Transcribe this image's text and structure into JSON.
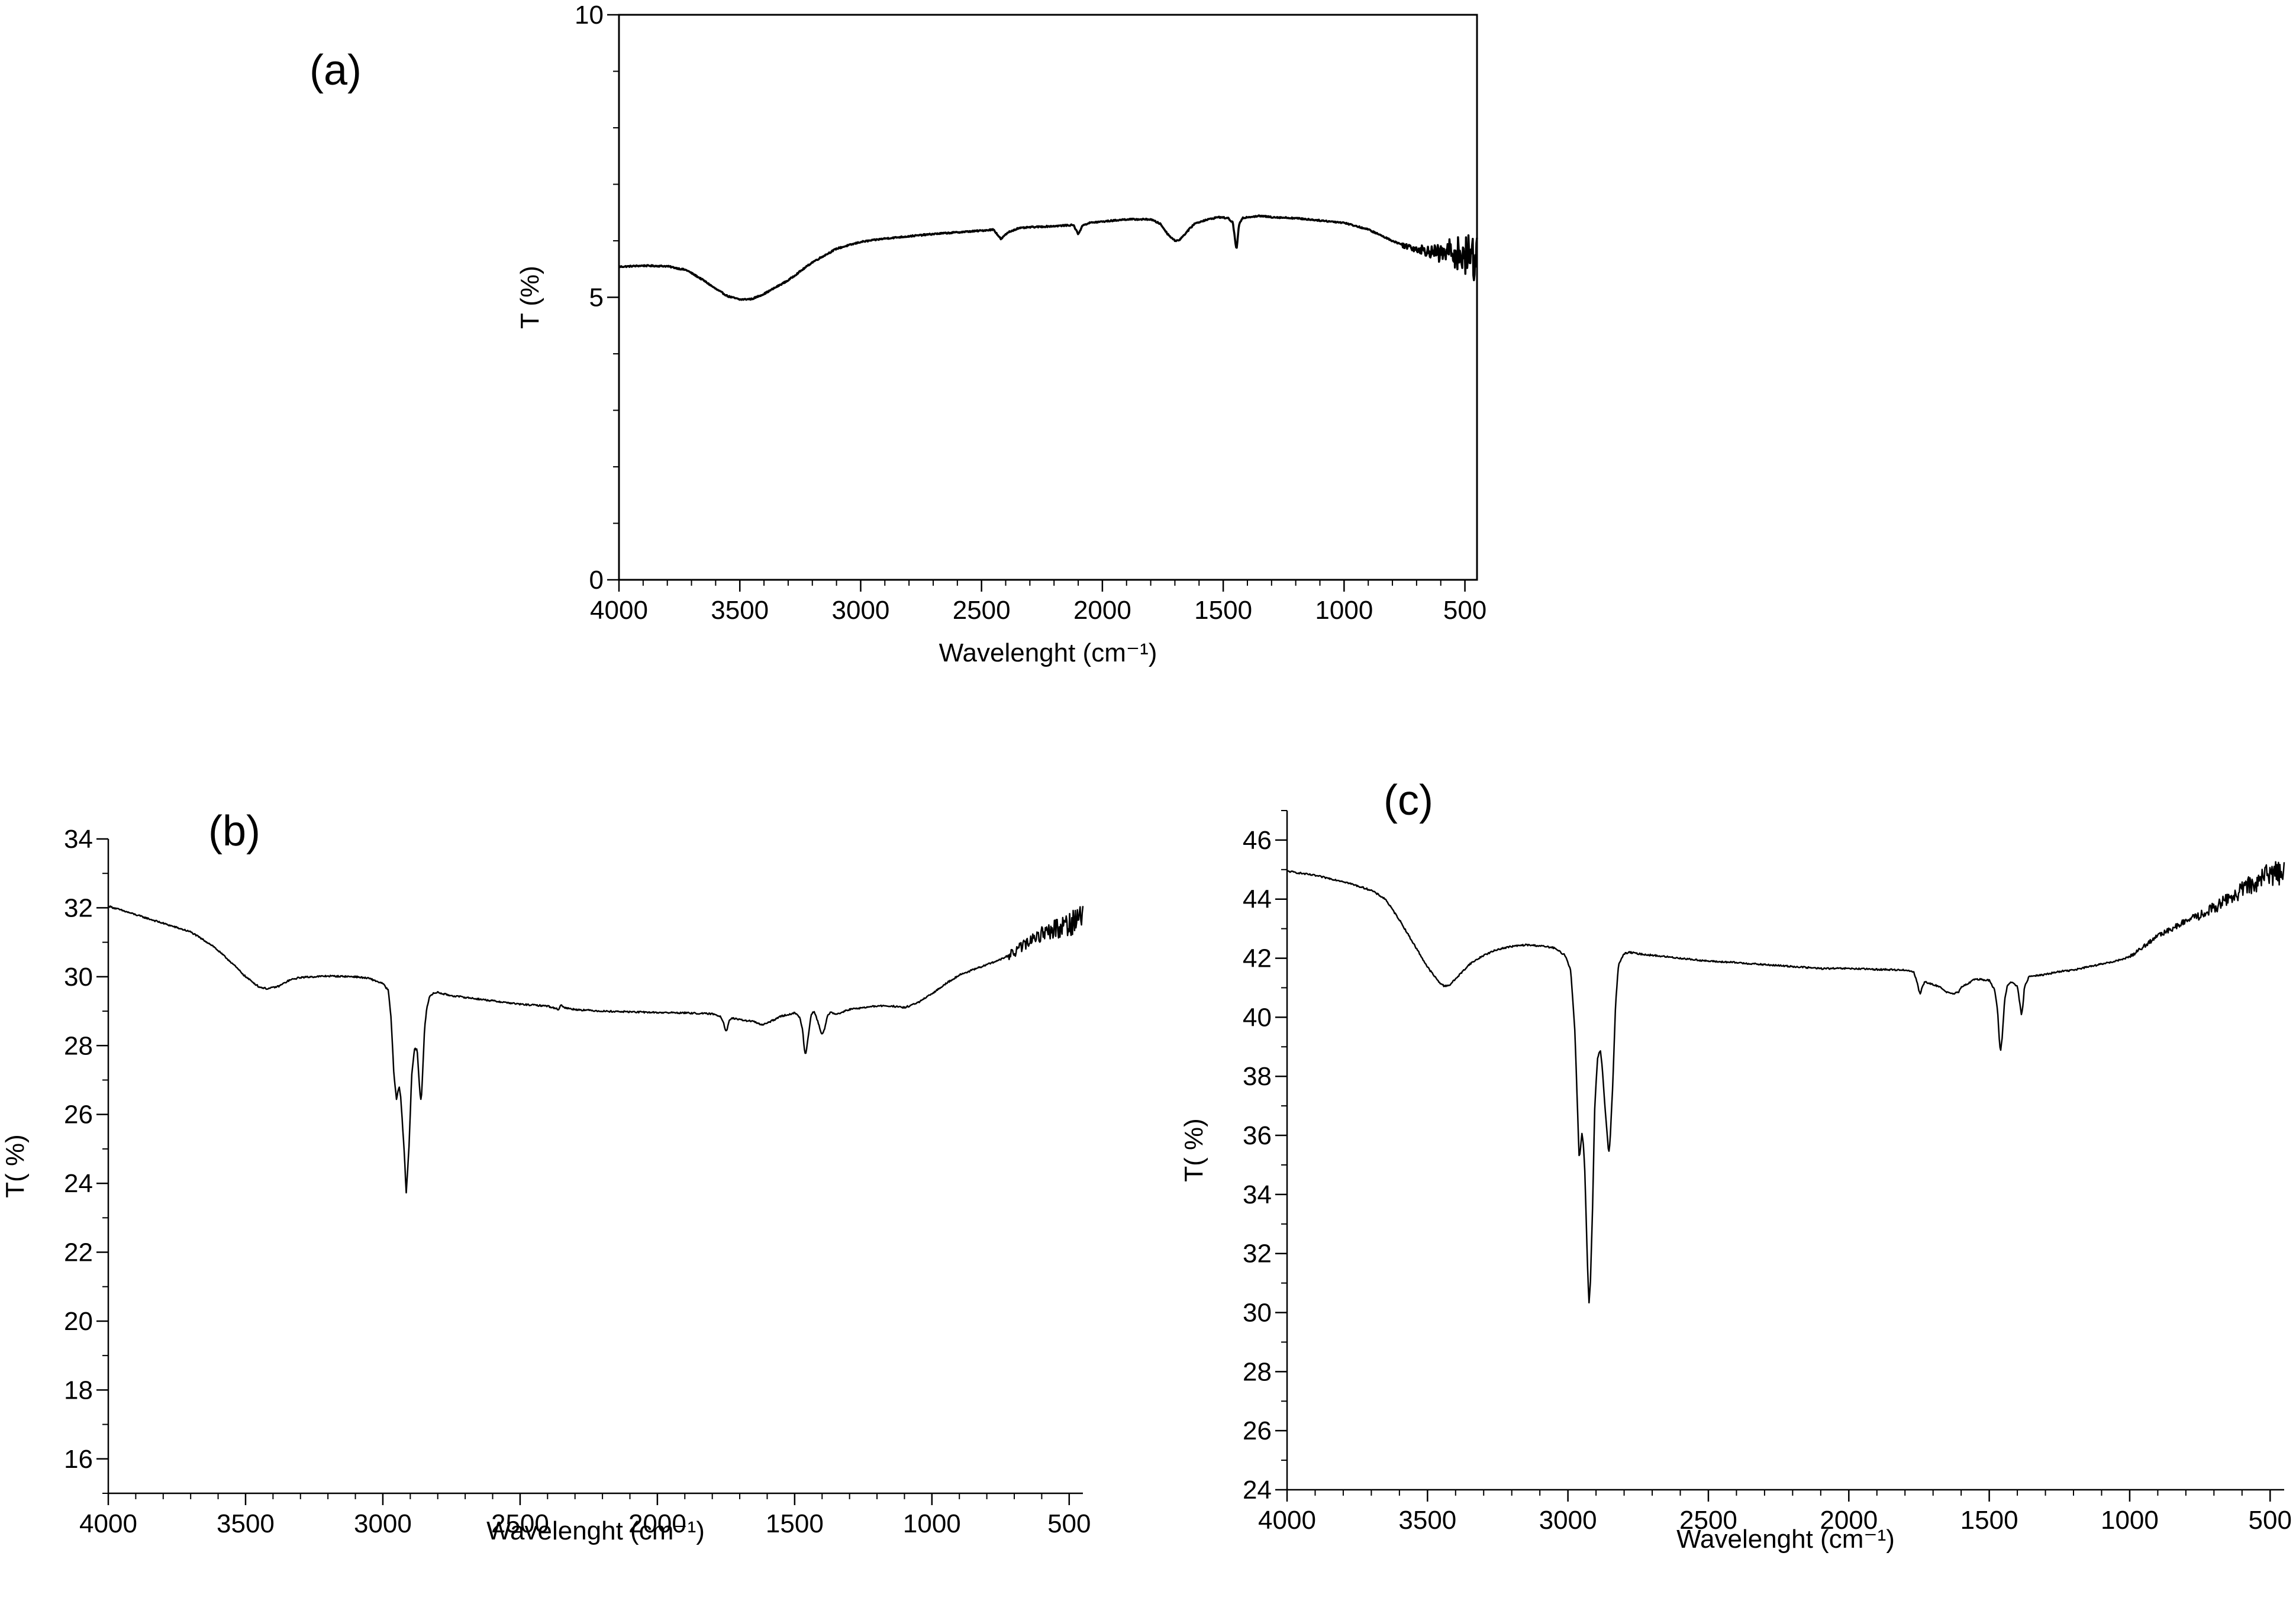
{
  "figure": {
    "panels": [
      {
        "label": "(a)"
      },
      {
        "label": "(b)"
      },
      {
        "label": "(c)"
      }
    ]
  },
  "chart_data": [
    {
      "id": "a",
      "type": "line",
      "panel_label": "(a)",
      "title": "",
      "xlabel": "Wavelenght (cm⁻¹)",
      "ylabel": "T (%)",
      "xlim": [
        4000,
        450
      ],
      "ylim": [
        0,
        10
      ],
      "xticks": [
        4000,
        3500,
        3000,
        2500,
        2000,
        1500,
        1000,
        500
      ],
      "yticks": [
        0,
        5,
        10
      ],
      "x_minor_step": 100,
      "y_minor_step": 1,
      "boxed": true,
      "grid": false,
      "line_color": "#000000",
      "line_width": 2.6,
      "noise_from": 760,
      "noise_amp": 0.05,
      "noise_amp_end": 0.5,
      "series": [
        {
          "name": "(a)",
          "x": [
            4000,
            3900,
            3800,
            3720,
            3650,
            3600,
            3550,
            3500,
            3450,
            3400,
            3300,
            3200,
            3100,
            3000,
            2900,
            2800,
            2700,
            2600,
            2500,
            2450,
            2420,
            2390,
            2350,
            2300,
            2200,
            2120,
            2100,
            2080,
            2050,
            2000,
            1900,
            1800,
            1760,
            1730,
            1700,
            1680,
            1650,
            1620,
            1580,
            1520,
            1480,
            1460,
            1445,
            1435,
            1420,
            1400,
            1350,
            1300,
            1200,
            1100,
            1000,
            950,
            900,
            850,
            800,
            760,
            700,
            650,
            600,
            560,
            530,
            500,
            480,
            460,
            450
          ],
          "y": [
            5.54,
            5.56,
            5.55,
            5.48,
            5.3,
            5.15,
            5.02,
            4.96,
            4.97,
            5.06,
            5.3,
            5.62,
            5.86,
            5.98,
            6.04,
            6.08,
            6.12,
            6.15,
            6.18,
            6.2,
            6.03,
            6.15,
            6.22,
            6.24,
            6.26,
            6.28,
            6.12,
            6.28,
            6.32,
            6.34,
            6.38,
            6.38,
            6.3,
            6.12,
            6.0,
            6.02,
            6.16,
            6.3,
            6.36,
            6.42,
            6.4,
            6.32,
            5.82,
            6.28,
            6.4,
            6.42,
            6.44,
            6.42,
            6.4,
            6.36,
            6.32,
            6.26,
            6.2,
            6.1,
            6.0,
            5.93,
            5.86,
            5.82,
            5.76,
            5.82,
            5.78,
            5.72,
            5.7,
            5.75,
            5.8
          ]
        }
      ]
    },
    {
      "id": "b",
      "type": "line",
      "panel_label": "(b)",
      "title": "",
      "xlabel": "Wavelenght (cm⁻¹)",
      "ylabel": "T( %)",
      "xlim": [
        4000,
        450
      ],
      "ylim": [
        15,
        34
      ],
      "xticks": [
        4000,
        3500,
        3000,
        2500,
        2000,
        1500,
        1000,
        500
      ],
      "yticks": [
        16,
        18,
        20,
        22,
        24,
        26,
        28,
        30,
        32,
        34
      ],
      "x_minor_step": 100,
      "y_minor_step": 1,
      "boxed": false,
      "grid": false,
      "line_color": "#000000",
      "line_width": 2,
      "noise_from": 720,
      "noise_amp": 0.15,
      "noise_amp_end": 0.5,
      "series": [
        {
          "name": "(b)",
          "x": [
            4000,
            3900,
            3800,
            3700,
            3620,
            3550,
            3500,
            3450,
            3420,
            3380,
            3340,
            3300,
            3250,
            3200,
            3100,
            3050,
            3000,
            2980,
            2970,
            2960,
            2950,
            2945,
            2940,
            2935,
            2925,
            2920,
            2915,
            2905,
            2895,
            2885,
            2875,
            2865,
            2860,
            2855,
            2848,
            2840,
            2830,
            2820,
            2800,
            2780,
            2750,
            2600,
            2500,
            2400,
            2360,
            2350,
            2340,
            2300,
            2200,
            2100,
            2000,
            1900,
            1800,
            1770,
            1760,
            1750,
            1745,
            1740,
            1730,
            1700,
            1650,
            1620,
            1600,
            1550,
            1500,
            1480,
            1470,
            1465,
            1460,
            1455,
            1440,
            1430,
            1420,
            1400,
            1390,
            1380,
            1370,
            1360,
            1350,
            1300,
            1250,
            1200,
            1150,
            1100,
            1050,
            1000,
            950,
            900,
            850,
            800,
            750,
            700,
            650,
            600,
            550,
            500,
            450
          ],
          "y": [
            32.05,
            31.8,
            31.55,
            31.3,
            30.9,
            30.4,
            30.0,
            29.7,
            29.65,
            29.72,
            29.9,
            29.98,
            30.0,
            30.02,
            30.0,
            29.95,
            29.8,
            29.6,
            28.8,
            27.2,
            26.4,
            26.7,
            26.8,
            26.5,
            25.3,
            24.6,
            23.7,
            25.0,
            27.1,
            27.9,
            27.9,
            26.6,
            26.4,
            27.2,
            28.5,
            29.1,
            29.4,
            29.5,
            29.55,
            29.5,
            29.45,
            29.3,
            29.2,
            29.15,
            29.05,
            29.2,
            29.1,
            29.05,
            29.0,
            28.98,
            28.96,
            28.95,
            28.92,
            28.85,
            28.7,
            28.4,
            28.5,
            28.7,
            28.8,
            28.75,
            28.7,
            28.6,
            28.65,
            28.85,
            28.95,
            28.8,
            28.4,
            27.9,
            27.75,
            28.0,
            28.9,
            29.0,
            28.8,
            28.3,
            28.5,
            28.9,
            28.95,
            28.95,
            28.9,
            29.05,
            29.1,
            29.15,
            29.15,
            29.1,
            29.25,
            29.5,
            29.8,
            30.05,
            30.2,
            30.35,
            30.5,
            30.7,
            31.0,
            31.25,
            31.4,
            31.55,
            31.8
          ]
        }
      ]
    },
    {
      "id": "c",
      "type": "line",
      "panel_label": "(c)",
      "title": "",
      "xlabel": "Wavelenght (cm⁻¹)",
      "ylabel": "T( %)",
      "xlim": [
        4000,
        450
      ],
      "ylim": [
        24,
        47
      ],
      "xticks": [
        4000,
        3500,
        3000,
        2500,
        2000,
        1500,
        1000,
        500
      ],
      "yticks": [
        24,
        26,
        28,
        30,
        32,
        34,
        36,
        38,
        40,
        42,
        44,
        46
      ],
      "x_minor_step": 100,
      "y_minor_step": 1,
      "boxed": false,
      "grid": false,
      "line_color": "#000000",
      "line_width": 2,
      "noise_from": 1000,
      "noise_amp": 0.06,
      "noise_amp_end": 0.5,
      "series": [
        {
          "name": "(c)",
          "x": [
            4000,
            3900,
            3800,
            3700,
            3650,
            3600,
            3550,
            3500,
            3460,
            3440,
            3420,
            3400,
            3350,
            3300,
            3250,
            3200,
            3150,
            3100,
            3050,
            3010,
            2990,
            2975,
            2965,
            2960,
            2955,
            2950,
            2945,
            2940,
            2930,
            2925,
            2920,
            2912,
            2905,
            2895,
            2885,
            2878,
            2870,
            2860,
            2855,
            2850,
            2840,
            2830,
            2820,
            2800,
            2780,
            2750,
            2600,
            2500,
            2400,
            2300,
            2200,
            2100,
            2000,
            1900,
            1800,
            1770,
            1760,
            1750,
            1745,
            1740,
            1730,
            1700,
            1680,
            1650,
            1630,
            1610,
            1600,
            1550,
            1500,
            1480,
            1470,
            1465,
            1460,
            1455,
            1445,
            1435,
            1420,
            1400,
            1390,
            1385,
            1380,
            1375,
            1360,
            1350,
            1300,
            1250,
            1200,
            1150,
            1100,
            1050,
            1000,
            950,
            900,
            850,
            800,
            750,
            700,
            650,
            600,
            550,
            500,
            450
          ],
          "y": [
            44.95,
            44.8,
            44.6,
            44.3,
            44.0,
            43.3,
            42.5,
            41.7,
            41.2,
            41.05,
            41.1,
            41.3,
            41.8,
            42.1,
            42.3,
            42.4,
            42.45,
            42.42,
            42.35,
            42.1,
            41.6,
            39.5,
            36.6,
            35.2,
            35.6,
            36.1,
            35.7,
            34.8,
            31.5,
            30.3,
            31.0,
            33.6,
            36.8,
            38.6,
            38.9,
            38.3,
            37.2,
            36.0,
            35.4,
            35.8,
            37.8,
            40.5,
            41.8,
            42.15,
            42.2,
            42.15,
            42.0,
            41.9,
            41.85,
            41.78,
            41.72,
            41.65,
            41.65,
            41.62,
            41.6,
            41.55,
            41.3,
            40.9,
            40.75,
            41.0,
            41.2,
            41.1,
            41.05,
            40.85,
            40.78,
            40.85,
            41.0,
            41.3,
            41.25,
            40.9,
            40.2,
            39.3,
            38.85,
            39.2,
            40.6,
            41.1,
            41.2,
            41.05,
            40.4,
            40.05,
            40.4,
            41.0,
            41.35,
            41.4,
            41.45,
            41.55,
            41.6,
            41.7,
            41.8,
            41.9,
            42.05,
            42.4,
            42.75,
            43.0,
            43.25,
            43.45,
            43.7,
            44.0,
            44.3,
            44.6,
            44.85,
            45.0
          ]
        }
      ]
    }
  ]
}
